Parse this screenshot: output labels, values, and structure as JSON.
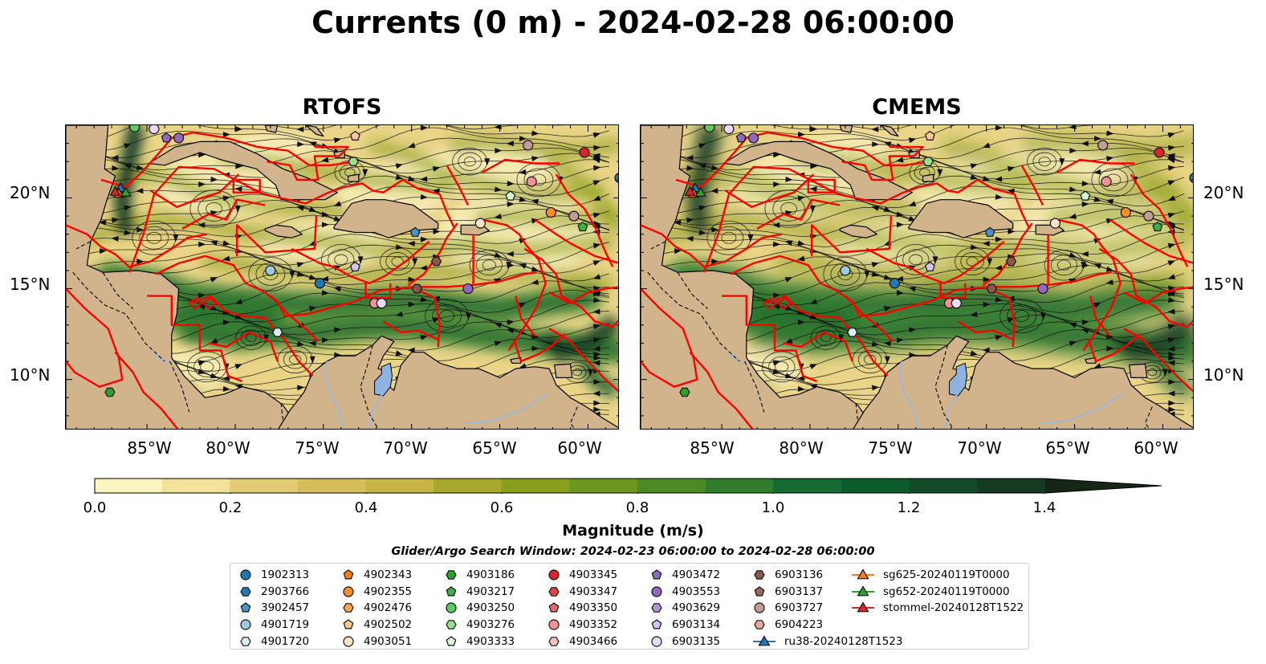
{
  "title": "Currents (0 m) - 2024-02-28 06:00:00",
  "panels": [
    {
      "title": "RTOFS"
    },
    {
      "title": "CMEMS"
    }
  ],
  "lat_labels": [
    "20°N",
    "15°N",
    "10°N"
  ],
  "lon_labels": [
    "85°W",
    "80°W",
    "75°W",
    "70°W",
    "65°W",
    "60°W"
  ],
  "colorbar": {
    "label": "Magnitude (m/s)",
    "ticks": [
      "0.0",
      "0.2",
      "0.4",
      "0.6",
      "0.8",
      "1.0",
      "1.2",
      "1.4"
    ],
    "colors": [
      "#fbf4c0",
      "#f1e19a",
      "#e2cb74",
      "#d6bd5b",
      "#c8b445",
      "#a8a82c",
      "#8a9e1d",
      "#6b9620",
      "#4c8a25",
      "#2f7d2c",
      "#146a30",
      "#0c5b2c",
      "#104a27",
      "#123b22",
      "#14301c",
      "#162616"
    ]
  },
  "search_window": "Glider/Argo Search Window: 2024-02-23 06:00:00 to 2024-02-28 06:00:00",
  "legend": [
    {
      "label": "1902313",
      "marker": "circle",
      "color": "#1f77b4"
    },
    {
      "label": "2903766",
      "marker": "hexagon",
      "color": "#1f77b4"
    },
    {
      "label": "3902457",
      "marker": "pentagon",
      "color": "#4a90c9"
    },
    {
      "label": "4901719",
      "marker": "circle",
      "color": "#9ecae1"
    },
    {
      "label": "4901720",
      "marker": "hexagon",
      "color": "#dbeef7"
    },
    {
      "label": "4902343",
      "marker": "pentagon",
      "color": "#ff7f0e"
    },
    {
      "label": "4902355",
      "marker": "circle",
      "color": "#ff8c2a"
    },
    {
      "label": "4902476",
      "marker": "hexagon",
      "color": "#ffa654"
    },
    {
      "label": "4902502",
      "marker": "pentagon",
      "color": "#ffc891"
    },
    {
      "label": "4903051",
      "marker": "circle",
      "color": "#ffe3c4"
    },
    {
      "label": "4903186",
      "marker": "hexagon",
      "color": "#2ca02c"
    },
    {
      "label": "4903217",
      "marker": "pentagon",
      "color": "#3fb13f"
    },
    {
      "label": "4903250",
      "marker": "circle",
      "color": "#5ec95e"
    },
    {
      "label": "4903276",
      "marker": "hexagon",
      "color": "#98df8a"
    },
    {
      "label": "4903333",
      "marker": "pentagon",
      "color": "#d8f5cf"
    },
    {
      "label": "4903345",
      "marker": "circle",
      "color": "#d62728"
    },
    {
      "label": "4903347",
      "marker": "hexagon",
      "color": "#e04545"
    },
    {
      "label": "4903350",
      "marker": "pentagon",
      "color": "#ea6b6b"
    },
    {
      "label": "4903352",
      "marker": "circle",
      "color": "#f29393"
    },
    {
      "label": "4903466",
      "marker": "hexagon",
      "color": "#f9c1c1"
    },
    {
      "label": "4903472",
      "marker": "pentagon",
      "color": "#8e6bbf"
    },
    {
      "label": "4903553",
      "marker": "circle",
      "color": "#9467bd"
    },
    {
      "label": "4903629",
      "marker": "hexagon",
      "color": "#b196d6"
    },
    {
      "label": "6903134",
      "marker": "pentagon",
      "color": "#d7c3f0"
    },
    {
      "label": "6903135",
      "marker": "circle",
      "color": "#e8daf9"
    },
    {
      "label": "6903136",
      "marker": "hexagon",
      "color": "#8c564b"
    },
    {
      "label": "6903137",
      "marker": "pentagon",
      "color": "#a0695b"
    },
    {
      "label": "6903727",
      "marker": "circle",
      "color": "#c49c94"
    },
    {
      "label": "6904223",
      "marker": "hexagon",
      "color": "#e7a99e"
    },
    {
      "label": "ru38-20240128T1523",
      "marker": "triangle-line",
      "color": "#1f77b4"
    },
    {
      "label": "sg625-20240119T0000",
      "marker": "triangle-line",
      "color": "#ff7f0e"
    },
    {
      "label": "sg652-20240119T0000",
      "marker": "triangle-line",
      "color": "#2ca02c"
    },
    {
      "label": "stommel-20240128T1522",
      "marker": "triangle-line",
      "color": "#d62728"
    }
  ],
  "colors": {
    "land": "#d2b48c",
    "eez": "#ff0000",
    "lake": "#8fb3e0",
    "river": "#9fb8d8"
  }
}
